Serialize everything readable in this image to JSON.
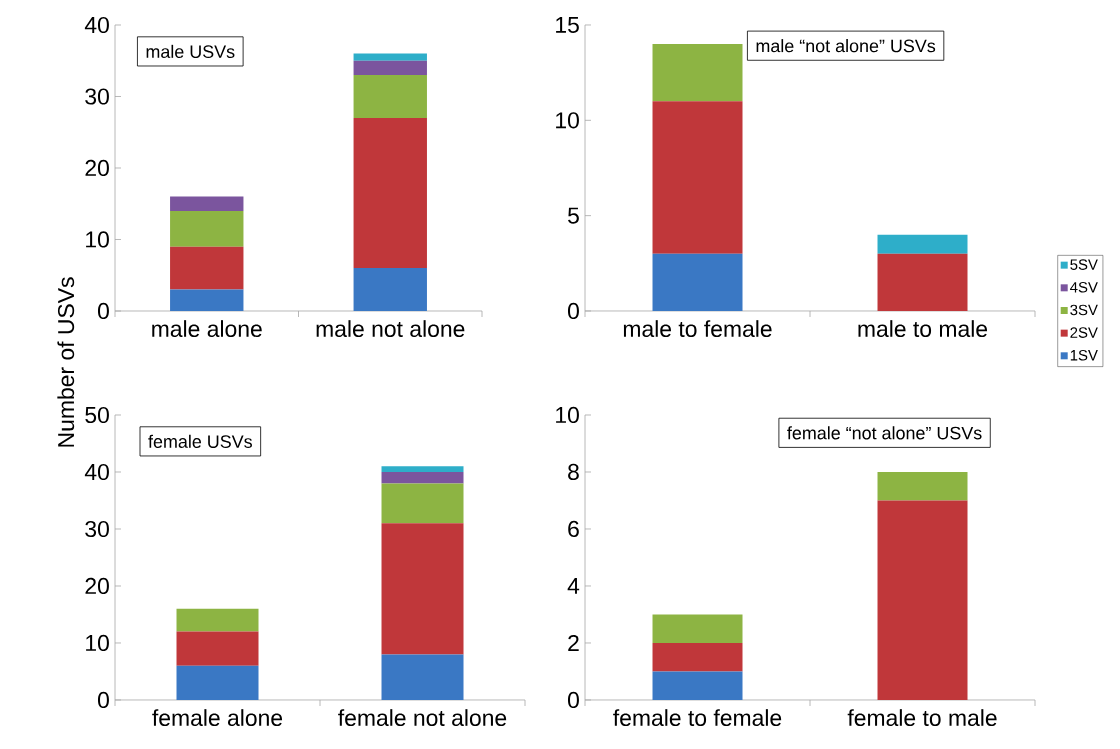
{
  "chart_data": [
    {
      "type": "bar",
      "stacked": true,
      "title": "male USVs",
      "ylabel": "Number of USVs",
      "categories": [
        "male alone",
        "male not alone"
      ],
      "ylim": [
        0,
        40
      ],
      "yticks": [
        0,
        10,
        20,
        30,
        40
      ],
      "series": [
        {
          "color": "#3a78c4",
          "values": [
            3,
            6
          ]
        },
        {
          "color": "#c0373a",
          "values": [
            6,
            21
          ]
        },
        {
          "color": "#8db443",
          "values": [
            5,
            6
          ]
        },
        {
          "color": "#7b559e",
          "values": [
            2,
            2
          ]
        },
        {
          "color": "#2eaec9",
          "values": [
            0,
            1
          ]
        }
      ]
    },
    {
      "type": "bar",
      "stacked": true,
      "title": "male “not alone” USVs",
      "legend": "right",
      "categories": [
        "male to female",
        "male to male"
      ],
      "ylim": [
        0,
        15
      ],
      "yticks": [
        0,
        5,
        10,
        15
      ],
      "series": [
        {
          "name": "1SV",
          "color": "#3a78c4",
          "values": [
            3,
            0
          ]
        },
        {
          "name": "2SV",
          "color": "#c0373a",
          "values": [
            8,
            3
          ]
        },
        {
          "name": "3SV",
          "color": "#8db443",
          "values": [
            3,
            0
          ]
        },
        {
          "name": "4SV",
          "color": "#7b559e",
          "values": [
            0,
            0
          ]
        },
        {
          "name": "5SV",
          "color": "#2eaec9",
          "values": [
            0,
            1
          ]
        }
      ]
    },
    {
      "type": "bar",
      "stacked": true,
      "title": "female USVs",
      "categories": [
        "female alone",
        "female not alone"
      ],
      "ylim": [
        0,
        50
      ],
      "yticks": [
        0,
        10,
        20,
        30,
        40,
        50
      ],
      "series": [
        {
          "color": "#3a78c4",
          "values": [
            6,
            8
          ]
        },
        {
          "color": "#c0373a",
          "values": [
            6,
            23
          ]
        },
        {
          "color": "#8db443",
          "values": [
            4,
            7
          ]
        },
        {
          "color": "#7b559e",
          "values": [
            0,
            2
          ]
        },
        {
          "color": "#2eaec9",
          "values": [
            0,
            1
          ]
        }
      ]
    },
    {
      "type": "bar",
      "stacked": true,
      "title": "female “not alone” USVs",
      "categories": [
        "female to female",
        "female to male"
      ],
      "ylim": [
        0,
        10
      ],
      "yticks": [
        0,
        2,
        4,
        6,
        8,
        10
      ],
      "series": [
        {
          "color": "#3a78c4",
          "values": [
            1,
            0
          ]
        },
        {
          "color": "#c0373a",
          "values": [
            1,
            7
          ]
        },
        {
          "color": "#8db443",
          "values": [
            1,
            1
          ]
        },
        {
          "color": "#7b559e",
          "values": [
            0,
            0
          ]
        },
        {
          "color": "#2eaec9",
          "values": [
            0,
            0
          ]
        }
      ]
    }
  ]
}
